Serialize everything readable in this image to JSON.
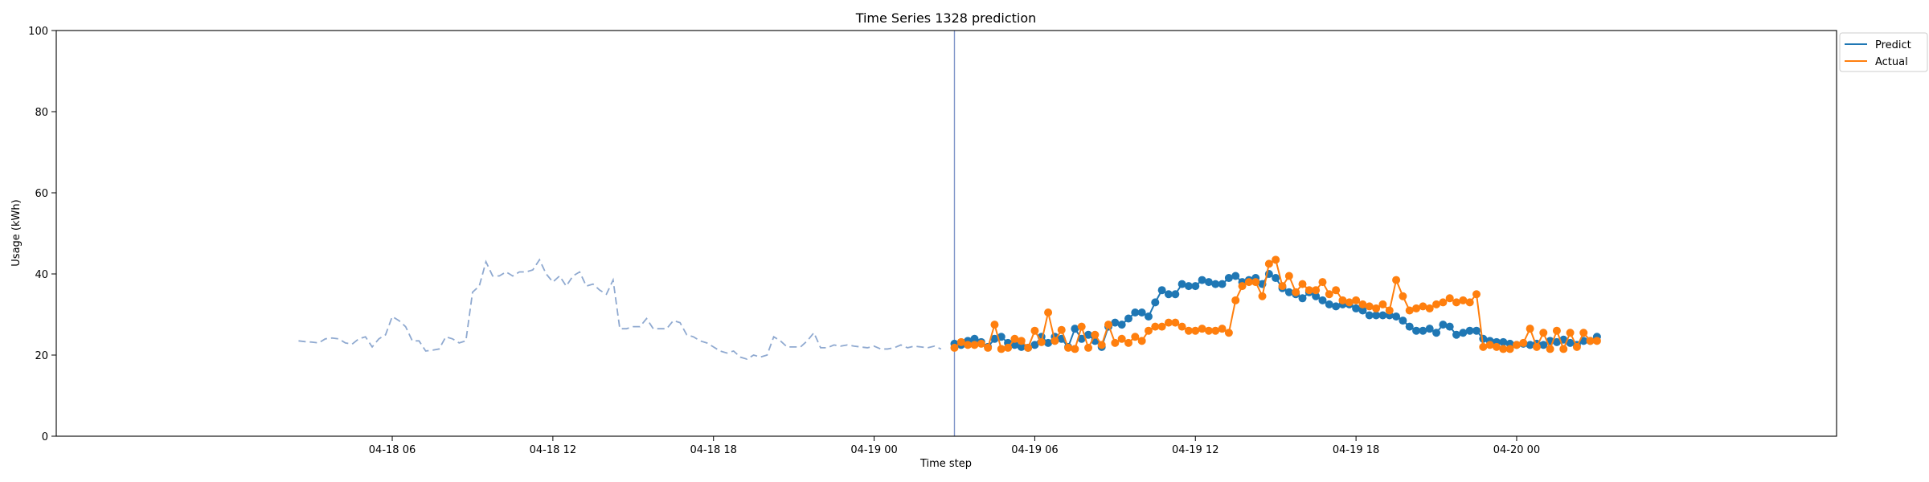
{
  "chart_data": {
    "type": "line",
    "title": "Time Series 1328 prediction",
    "xlabel": "Time step",
    "ylabel": "Usage (kWh)",
    "ylim": [
      0,
      100
    ],
    "yticks": [
      0,
      20,
      40,
      60,
      80,
      100
    ],
    "x_unit": "hours since 04-18 00:00",
    "xlim": [
      -6.55,
      59.95
    ],
    "xticks": [
      {
        "x": 6,
        "label": "04-18 06"
      },
      {
        "x": 12,
        "label": "04-18 12"
      },
      {
        "x": 18,
        "label": "04-18 18"
      },
      {
        "x": 24,
        "label": "04-19 00"
      },
      {
        "x": 30,
        "label": "04-19 06"
      },
      {
        "x": 36,
        "label": "04-19 12"
      },
      {
        "x": 42,
        "label": "04-19 18"
      },
      {
        "x": 48,
        "label": "04-20 00"
      }
    ],
    "split_x": 27,
    "legend": {
      "position": "top-right",
      "entries": [
        "Predict",
        "Actual"
      ]
    },
    "colors": {
      "predict": "#1f77b4",
      "actual": "#ff7f0e",
      "history": "#8fa9d0",
      "split": "#7f95c8"
    },
    "history": {
      "x_start": 2.5,
      "step": 0.25,
      "values": [
        23.5,
        23.3,
        23.2,
        23.0,
        24.0,
        24.2,
        24.0,
        23.0,
        22.7,
        24.0,
        24.5,
        22.0,
        24.0,
        25.0,
        29.5,
        28.5,
        27.0,
        23.5,
        23.5,
        21.0,
        21.2,
        21.5,
        24.5,
        24.0,
        23.0,
        23.5,
        35.5,
        37.0,
        43.0,
        39.5,
        39.5,
        40.5,
        39.5,
        40.5,
        40.5,
        41.0,
        43.5,
        40.0,
        38.0,
        39.5,
        37.0,
        39.5,
        40.5,
        37.0,
        37.5,
        36.0,
        35.0,
        38.5,
        26.5,
        26.5,
        27.0,
        27.0,
        29.0,
        26.5,
        26.5,
        26.5,
        28.5,
        28.0,
        25.0,
        24.5,
        23.5,
        23.0,
        22.0,
        21.0,
        20.5,
        21.0,
        19.5,
        19.0,
        20.0,
        19.5,
        20.0,
        24.5,
        23.5,
        22.0,
        22.0,
        22.0,
        23.5,
        25.5,
        21.8,
        21.8,
        22.5,
        22.2,
        22.5,
        22.2,
        22.0,
        21.8,
        22.2,
        21.5,
        21.5,
        21.8,
        22.5,
        21.8,
        22.2,
        22.0,
        21.8,
        22.2,
        21.5
      ]
    },
    "series": [
      {
        "name": "Predict",
        "x_start": 27,
        "step": 0.25,
        "values": [
          22.8,
          22.5,
          23.5,
          24.0,
          23.2,
          22.0,
          24.0,
          24.5,
          23.0,
          22.5,
          22.0,
          21.8,
          22.5,
          24.5,
          23.0,
          24.5,
          24.0,
          22.0,
          26.5,
          24.0,
          25.0,
          23.5,
          22.0,
          27.0,
          28.0,
          27.5,
          29.0,
          30.5,
          30.5,
          29.5,
          33.0,
          36.0,
          35.0,
          35.0,
          37.5,
          37.0,
          37.0,
          38.5,
          38.0,
          37.5,
          37.5,
          39.0,
          39.5,
          38.0,
          38.5,
          39.0,
          37.5,
          40.0,
          39.0,
          36.5,
          35.5,
          35.0,
          34.0,
          35.5,
          34.5,
          33.5,
          32.5,
          32.0,
          32.5,
          32.5,
          31.5,
          31.0,
          29.8,
          29.8,
          29.8,
          29.8,
          29.5,
          28.5,
          27.0,
          26.0,
          26.0,
          26.5,
          25.5,
          27.5,
          27.0,
          25.0,
          25.5,
          26.0,
          26.0,
          24.0,
          23.5,
          23.2,
          23.2,
          22.8,
          22.5,
          22.8,
          22.5,
          22.8,
          22.5,
          23.5,
          23.2,
          23.8,
          23.0,
          22.5,
          23.5,
          23.5,
          24.5
        ]
      },
      {
        "name": "Actual",
        "x_start": 27,
        "step": 0.25,
        "values": [
          21.8,
          23.2,
          22.5,
          22.5,
          22.8,
          21.8,
          27.5,
          21.5,
          21.8,
          24.0,
          23.5,
          21.8,
          26.0,
          23.2,
          30.5,
          23.5,
          26.2,
          21.8,
          21.5,
          27.0,
          21.8,
          25.0,
          22.5,
          27.5,
          23.0,
          24.0,
          23.0,
          24.5,
          23.5,
          26.0,
          27.0,
          27.0,
          28.0,
          28.0,
          27.0,
          26.0,
          26.0,
          26.5,
          26.0,
          26.0,
          26.5,
          25.5,
          33.5,
          37.0,
          38.0,
          38.0,
          34.5,
          42.5,
          43.5,
          37.0,
          39.5,
          35.5,
          37.5,
          36.0,
          36.0,
          38.0,
          35.0,
          36.0,
          33.5,
          33.0,
          33.5,
          32.5,
          32.0,
          31.5,
          32.5,
          31.0,
          38.5,
          34.5,
          31.0,
          31.5,
          32.0,
          31.5,
          32.5,
          33.0,
          34.0,
          33.0,
          33.5,
          33.0,
          35.0,
          22.0,
          22.5,
          22.0,
          21.5,
          21.5,
          22.5,
          23.0,
          26.5,
          22.0,
          25.5,
          21.5,
          26.0,
          21.5,
          25.5,
          22.0,
          25.5,
          23.5,
          23.5
        ]
      }
    ]
  }
}
